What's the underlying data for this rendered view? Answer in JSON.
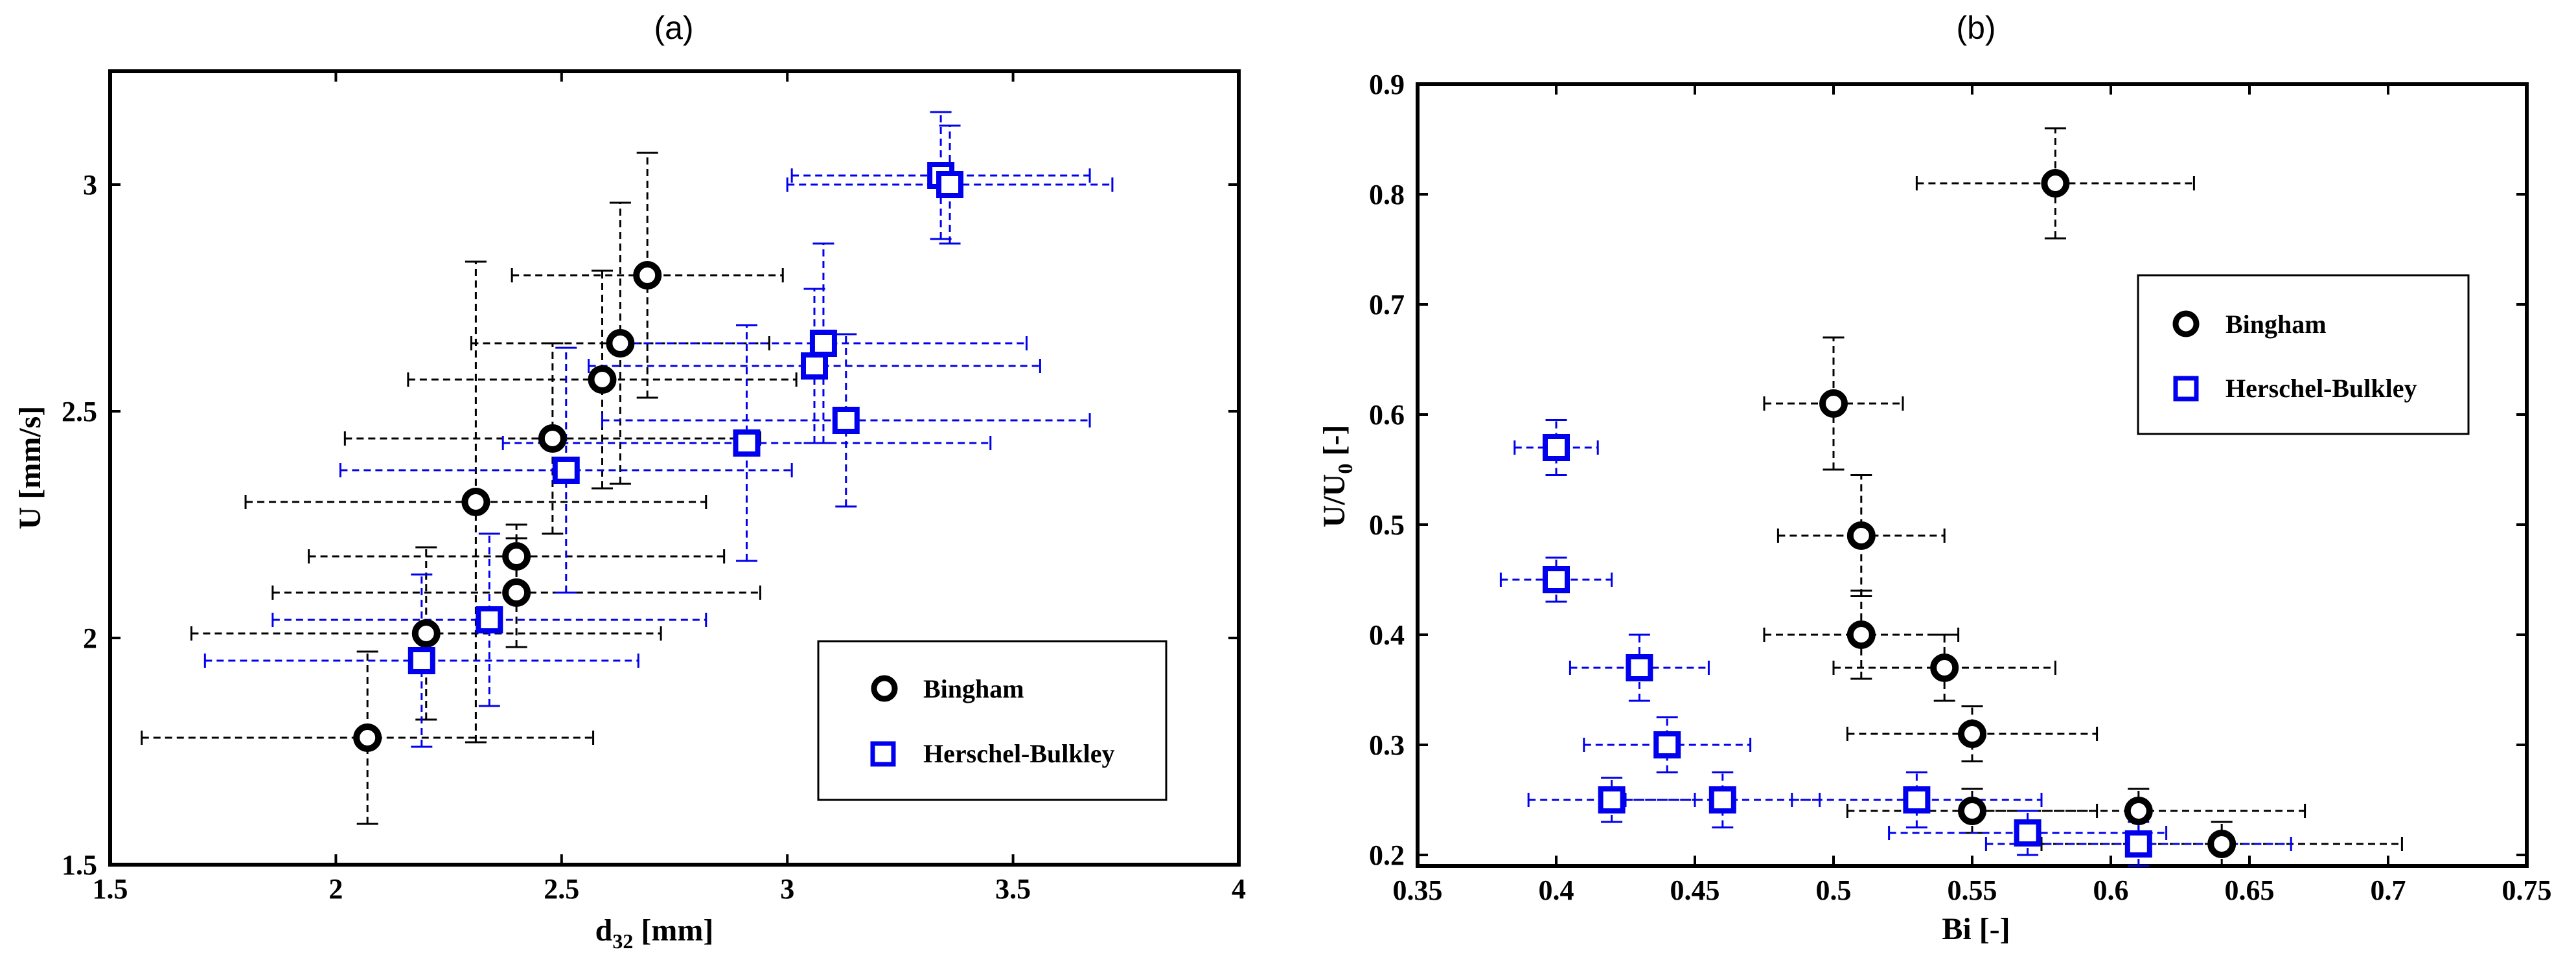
{
  "chart_data": [
    {
      "type": "scatter",
      "panel_label": "(a)",
      "xlabel_main": "d",
      "xlabel_sub": "32",
      "xlabel_tail": " [mm]",
      "ylabel_main": "U [mm/s]",
      "xlim": [
        1.5,
        4
      ],
      "ylim": [
        1.5,
        3.25
      ],
      "x_ticks": [
        "1.5",
        "2",
        "2.5",
        "3",
        "3.5",
        "4"
      ],
      "x_tick_values": [
        1.5,
        2,
        2.5,
        3,
        3.5,
        4
      ],
      "y_ticks": [
        "1.5",
        "2",
        "2.5",
        "3"
      ],
      "y_tick_values": [
        1.5,
        2,
        2.5,
        3
      ],
      "legend_position": "lower-right",
      "series": [
        {
          "name": "Bingham",
          "marker": "circle",
          "color": "#000000",
          "points": [
            {
              "x": 2.07,
              "y": 1.78,
              "xerr": 0.5,
              "yerr": 0.19
            },
            {
              "x": 2.2,
              "y": 2.01,
              "xerr": 0.52,
              "yerr": 0.19
            },
            {
              "x": 2.4,
              "y": 2.1,
              "xerr": 0.54,
              "yerr": 0.12
            },
            {
              "x": 2.4,
              "y": 2.18,
              "xerr": 0.46,
              "yerr": 0.07
            },
            {
              "x": 2.31,
              "y": 2.3,
              "xerr": 0.51,
              "yerr": 0.53
            },
            {
              "x": 2.48,
              "y": 2.44,
              "xerr": 0.46,
              "yerr": 0.21
            },
            {
              "x": 2.59,
              "y": 2.57,
              "xerr": 0.43,
              "yerr": 0.24
            },
            {
              "x": 2.63,
              "y": 2.65,
              "xerr": 0.33,
              "yerr": 0.31
            },
            {
              "x": 2.69,
              "y": 2.8,
              "xerr": 0.3,
              "yerr": 0.27
            }
          ]
        },
        {
          "name": "Herschel-Bulkley",
          "marker": "square",
          "color": "#0000ee",
          "points": [
            {
              "x": 2.19,
              "y": 1.95,
              "xerr": 0.48,
              "yerr": 0.19
            },
            {
              "x": 2.34,
              "y": 2.04,
              "xerr": 0.48,
              "yerr": 0.19
            },
            {
              "x": 2.51,
              "y": 2.37,
              "xerr": 0.5,
              "yerr": 0.27
            },
            {
              "x": 2.91,
              "y": 2.43,
              "xerr": 0.54,
              "yerr": 0.26
            },
            {
              "x": 3.13,
              "y": 2.48,
              "xerr": 0.54,
              "yerr": 0.19
            },
            {
              "x": 3.06,
              "y": 2.6,
              "xerr": 0.5,
              "yerr": 0.17
            },
            {
              "x": 3.08,
              "y": 2.65,
              "xerr": 0.45,
              "yerr": 0.22
            },
            {
              "x": 3.34,
              "y": 3.02,
              "xerr": 0.33,
              "yerr": 0.14
            },
            {
              "x": 3.36,
              "y": 3.0,
              "xerr": 0.36,
              "yerr": 0.13
            }
          ]
        }
      ]
    },
    {
      "type": "scatter",
      "panel_label": "(b)",
      "xlabel_main": "Bi [-]",
      "ylabel_main": "U/U",
      "ylabel_sub": "0",
      "ylabel_tail": " [-]",
      "xlim": [
        0.35,
        0.75
      ],
      "ylim": [
        0.19,
        0.9
      ],
      "x_ticks": [
        "0.35",
        "0.4",
        "0.45",
        "0.5",
        "0.55",
        "0.6",
        "0.65",
        "0.7",
        "0.75"
      ],
      "x_tick_values": [
        0.35,
        0.4,
        0.45,
        0.5,
        0.55,
        0.6,
        0.65,
        0.7,
        0.75
      ],
      "y_ticks": [
        "0.2",
        "0.3",
        "0.4",
        "0.5",
        "0.6",
        "0.7",
        "0.8",
        "0.9"
      ],
      "y_tick_values": [
        0.2,
        0.3,
        0.4,
        0.5,
        0.6,
        0.7,
        0.8,
        0.9
      ],
      "legend_position": "upper-right",
      "series": [
        {
          "name": "Bingham",
          "marker": "circle",
          "color": "#000000",
          "points": [
            {
              "x": 0.58,
              "y": 0.81,
              "xerr": 0.05,
              "yerr": 0.05
            },
            {
              "x": 0.5,
              "y": 0.61,
              "xerr": 0.025,
              "yerr": 0.06
            },
            {
              "x": 0.51,
              "y": 0.49,
              "xerr": 0.03,
              "yerr": 0.055
            },
            {
              "x": 0.51,
              "y": 0.4,
              "xerr": 0.035,
              "yerr": 0.04
            },
            {
              "x": 0.54,
              "y": 0.37,
              "xerr": 0.04,
              "yerr": 0.03
            },
            {
              "x": 0.55,
              "y": 0.31,
              "xerr": 0.045,
              "yerr": 0.025
            },
            {
              "x": 0.55,
              "y": 0.24,
              "xerr": 0.045,
              "yerr": 0.02
            },
            {
              "x": 0.61,
              "y": 0.24,
              "xerr": 0.06,
              "yerr": 0.02
            },
            {
              "x": 0.64,
              "y": 0.21,
              "xerr": 0.065,
              "yerr": 0.02
            }
          ]
        },
        {
          "name": "Herschel-Bulkley",
          "marker": "square",
          "color": "#0000ee",
          "points": [
            {
              "x": 0.4,
              "y": 0.57,
              "xerr": 0.015,
              "yerr": 0.025
            },
            {
              "x": 0.4,
              "y": 0.45,
              "xerr": 0.02,
              "yerr": 0.02
            },
            {
              "x": 0.43,
              "y": 0.37,
              "xerr": 0.025,
              "yerr": 0.03
            },
            {
              "x": 0.44,
              "y": 0.3,
              "xerr": 0.03,
              "yerr": 0.025
            },
            {
              "x": 0.42,
              "y": 0.25,
              "xerr": 0.03,
              "yerr": 0.02
            },
            {
              "x": 0.46,
              "y": 0.25,
              "xerr": 0.035,
              "yerr": 0.025
            },
            {
              "x": 0.53,
              "y": 0.25,
              "xerr": 0.045,
              "yerr": 0.025
            },
            {
              "x": 0.57,
              "y": 0.22,
              "xerr": 0.05,
              "yerr": 0.02
            },
            {
              "x": 0.61,
              "y": 0.21,
              "xerr": 0.055,
              "yerr": 0.02
            }
          ]
        }
      ]
    }
  ]
}
